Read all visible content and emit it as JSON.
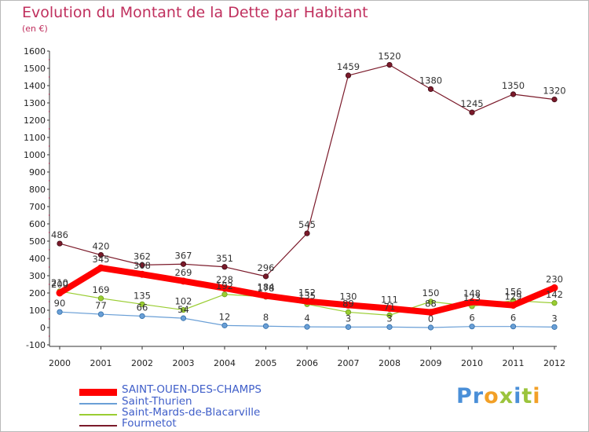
{
  "title": "Evolution du Montant de la Dette par Habitant",
  "unit": "(en €)",
  "logo": {
    "text": "Proxiti",
    "colors": [
      "#4a8fd8",
      "#4a8fd8",
      "#f2a027",
      "#9bc43c",
      "#4a8fd8",
      "#9bc43c",
      "#f2a027"
    ]
  },
  "chart_data": {
    "type": "line",
    "title": "Evolution du Montant de la Dette par Habitant",
    "xlabel": "",
    "ylabel": "(en €)",
    "x": [
      2000,
      2001,
      2002,
      2003,
      2004,
      2005,
      2006,
      2007,
      2008,
      2009,
      2010,
      2011,
      2012
    ],
    "ylim": [
      -100,
      1600
    ],
    "yticks": [
      -100,
      0,
      100,
      200,
      300,
      400,
      500,
      600,
      700,
      800,
      900,
      1000,
      1100,
      1200,
      1300,
      1400,
      1500,
      1600
    ],
    "grid": false,
    "legend_position": "bottom",
    "series": [
      {
        "name": "SAINT-OUEN-DES-CHAMPS",
        "color": "#ff0000",
        "values": [
          200,
          345,
          308,
          269,
          228,
          184,
          152,
          130,
          111,
          88,
          148,
          129,
          230
        ]
      },
      {
        "name": "Saint-Thurien",
        "color": "#6a9fd6",
        "values": [
          90,
          77,
          66,
          54,
          12,
          8,
          4,
          3,
          3,
          0,
          6,
          6,
          3
        ]
      },
      {
        "name": "Saint-Mards-de-Blacarville",
        "color": "#9acd32",
        "values": [
          210,
          169,
          135,
          102,
          192,
          178,
          135,
          89,
          71,
          150,
          123,
          156,
          142
        ]
      },
      {
        "name": "Fourmetot",
        "color": "#7b1a2a",
        "values": [
          486,
          420,
          362,
          367,
          351,
          296,
          545,
          1459,
          1520,
          1380,
          1245,
          1350,
          1320
        ]
      }
    ]
  }
}
